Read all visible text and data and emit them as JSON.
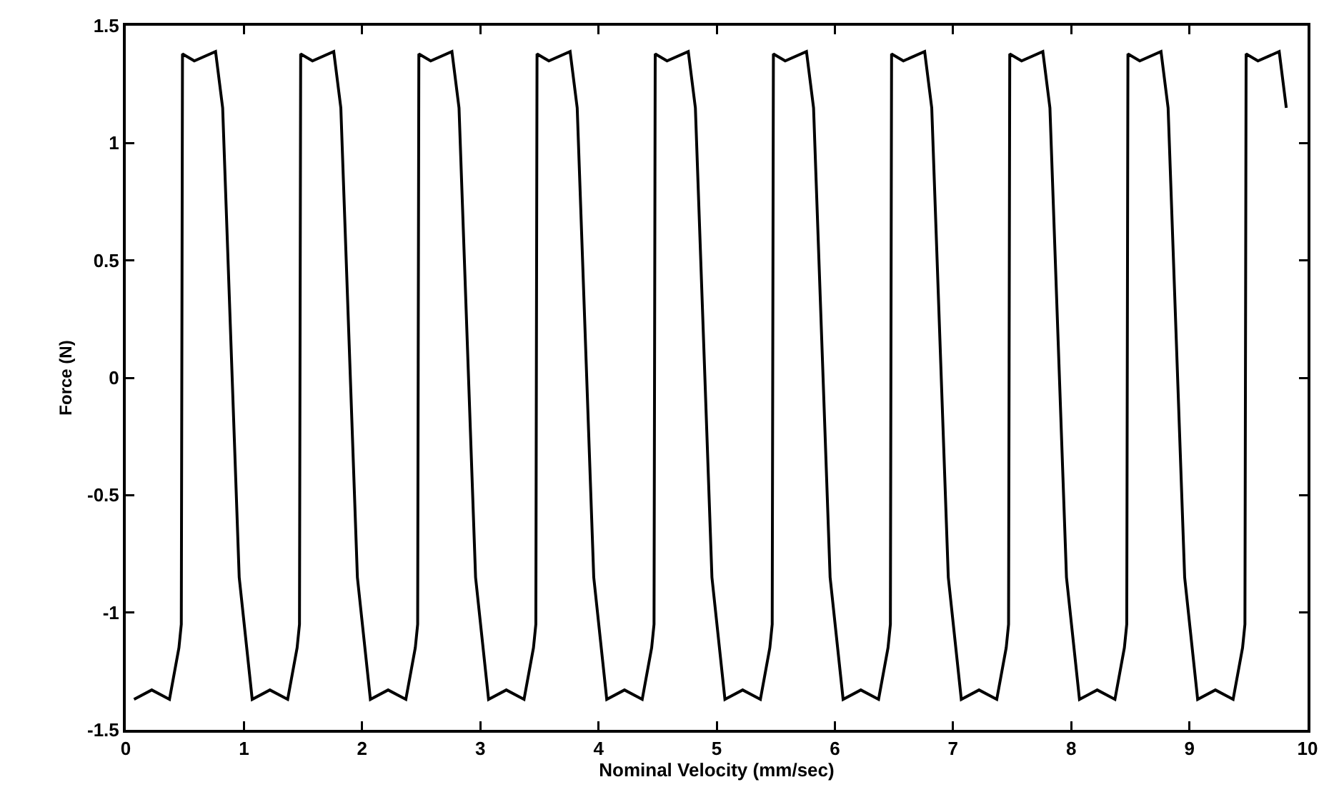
{
  "chart_data": {
    "type": "line",
    "xlabel": "Nominal Velocity (mm/sec)",
    "ylabel": "Force (N)",
    "xlim": [
      0,
      10
    ],
    "ylim": [
      -1.5,
      1.5
    ],
    "xticks": [
      0,
      1,
      2,
      3,
      4,
      5,
      6,
      7,
      8,
      9,
      10
    ],
    "yticks": [
      -1.5,
      -1,
      -0.5,
      0,
      0.5,
      1,
      1.5
    ],
    "grid": false,
    "marker": "none",
    "line_style": "solid",
    "series": [
      {
        "color": "#000000",
        "x": [
          0.07,
          0.22,
          0.37,
          0.45,
          0.47,
          0.48,
          0.58,
          0.76,
          0.82,
          0.96,
          1.07,
          1.22,
          1.37,
          1.45,
          1.47,
          1.48,
          1.58,
          1.76,
          1.82,
          1.96,
          2.07,
          2.22,
          2.37,
          2.45,
          2.47,
          2.48,
          2.58,
          2.76,
          2.82,
          2.96,
          3.07,
          3.22,
          3.37,
          3.45,
          3.47,
          3.48,
          3.58,
          3.76,
          3.82,
          3.96,
          4.07,
          4.22,
          4.37,
          4.45,
          4.47,
          4.48,
          4.58,
          4.76,
          4.82,
          4.96,
          5.07,
          5.22,
          5.37,
          5.45,
          5.47,
          5.48,
          5.58,
          5.76,
          5.82,
          5.96,
          6.07,
          6.22,
          6.37,
          6.45,
          6.47,
          6.48,
          6.58,
          6.76,
          6.82,
          6.96,
          7.07,
          7.22,
          7.37,
          7.45,
          7.47,
          7.48,
          7.58,
          7.76,
          7.82,
          7.96,
          8.07,
          8.22,
          8.37,
          8.45,
          8.47,
          8.48,
          8.58,
          8.76,
          8.82,
          8.96,
          9.07,
          9.22,
          9.37,
          9.45,
          9.47,
          9.48,
          9.58,
          9.76,
          9.82
        ],
        "values": [
          -1.37,
          -1.33,
          -1.37,
          -1.15,
          -1.05,
          1.38,
          1.35,
          1.39,
          1.15,
          -0.85,
          -1.37,
          -1.33,
          -1.37,
          -1.15,
          -1.05,
          1.38,
          1.35,
          1.39,
          1.15,
          -0.85,
          -1.37,
          -1.33,
          -1.37,
          -1.15,
          -1.05,
          1.38,
          1.35,
          1.39,
          1.15,
          -0.85,
          -1.37,
          -1.33,
          -1.37,
          -1.15,
          -1.05,
          1.38,
          1.35,
          1.39,
          1.15,
          -0.85,
          -1.37,
          -1.33,
          -1.37,
          -1.15,
          -1.05,
          1.38,
          1.35,
          1.39,
          1.15,
          -0.85,
          -1.37,
          -1.33,
          -1.37,
          -1.15,
          -1.05,
          1.38,
          1.35,
          1.39,
          1.15,
          -0.85,
          -1.37,
          -1.33,
          -1.37,
          -1.15,
          -1.05,
          1.38,
          1.35,
          1.39,
          1.15,
          -0.85,
          -1.37,
          -1.33,
          -1.37,
          -1.15,
          -1.05,
          1.38,
          1.35,
          1.39,
          1.15,
          -0.85,
          -1.37,
          -1.33,
          -1.37,
          -1.15,
          -1.05,
          1.38,
          1.35,
          1.39,
          1.15,
          -0.85,
          -1.37,
          -1.33,
          -1.37,
          -1.15,
          -1.05,
          1.38,
          1.35,
          1.39,
          1.15
        ]
      }
    ]
  }
}
